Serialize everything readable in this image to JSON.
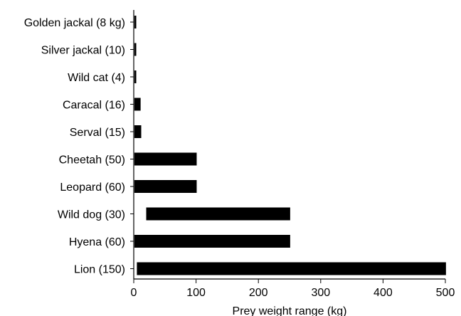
{
  "chart_data": {
    "type": "bar",
    "orientation": "horizontal",
    "categories": [
      "Golden jackal (8 kg)",
      "Silver jackal (10)",
      "Wild cat  (4)",
      "Caracal (16)",
      "Serval (15)",
      "Cheetah (50)",
      "Leopard (60)",
      "Wild dog (30)",
      "Hyena (60)",
      "Lion (150)"
    ],
    "ranges": [
      [
        1,
        4
      ],
      [
        1,
        4
      ],
      [
        1,
        4
      ],
      [
        1,
        11
      ],
      [
        1,
        12
      ],
      [
        1,
        101
      ],
      [
        1,
        101
      ],
      [
        20,
        251
      ],
      [
        1,
        251
      ],
      [
        5,
        501
      ]
    ],
    "title": "",
    "xlabel": "Prey weight range (kg)",
    "ylabel": "",
    "xlim": [
      0,
      500
    ],
    "xticks": [
      0,
      100,
      200,
      300,
      400,
      500
    ],
    "grid": false,
    "bar_color": "#000000"
  }
}
